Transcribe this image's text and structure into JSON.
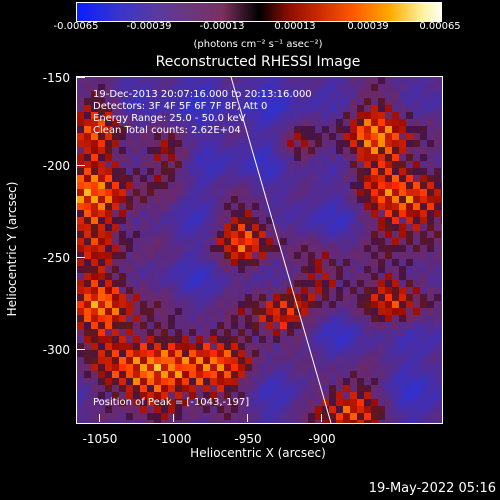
{
  "colorbar": {
    "ticks": [
      "-0.00065",
      "-0.00039",
      "-0.00013",
      "0.00013",
      "0.00039",
      "0.00065"
    ],
    "unit_prefix": "(photons cm",
    "unit_full": "(photons cm⁻² s⁻¹ asec⁻²)"
  },
  "plot": {
    "title": "Reconstructed RHESSI Image",
    "annotations": {
      "time": "19-Dec-2013 20:07:16.000 to 20:13:16.000",
      "detectors": "Detectors: 3F 4F 5F 6F 7F 8F, Att 0",
      "energy": "Energy Range: 25.0 - 50.0 keV",
      "method": "Clean     Total counts: 2.62E+04",
      "peak": "Position of Peak = [-1043,-197]"
    },
    "xlabel": "Heliocentric X (arcsec)",
    "ylabel": "Heliocentric Y (arcsec)",
    "xticks": [
      "-1050",
      "-1000",
      "-950",
      "-900"
    ],
    "yticks": [
      "-150",
      "-200",
      "-250",
      "-300"
    ]
  },
  "footer": {
    "date": "19-May-2022 05:16"
  },
  "colors": {
    "background": "#000000",
    "axis": "#ffffff"
  }
}
